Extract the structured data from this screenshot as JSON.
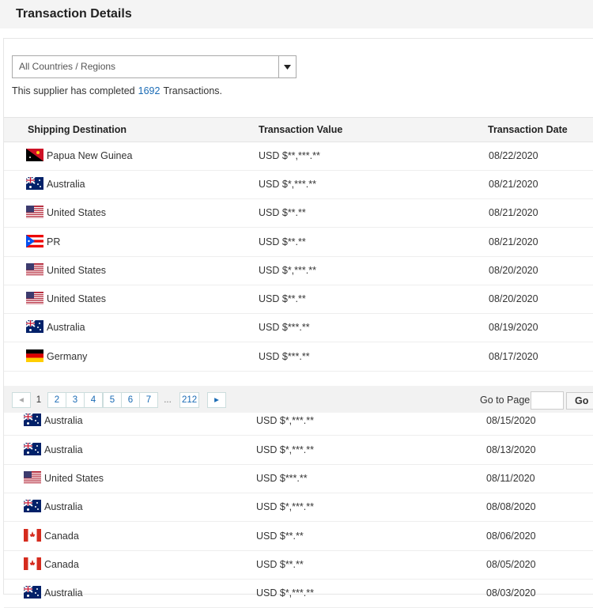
{
  "header": {
    "title": "Transaction Details"
  },
  "filter": {
    "selected": "All Countries / Regions"
  },
  "summary": {
    "prefix": "This supplier has completed",
    "count": "1692",
    "suffix": "Transactions."
  },
  "table": {
    "columns": [
      "Shipping Destination",
      "Transaction Value",
      "Transaction Date"
    ],
    "rows": [
      [
        "Papua New Guinea",
        "USD $**,***.**",
        "08/22/2020"
      ],
      [
        "Australia",
        "USD $*,***.**",
        "08/21/2020"
      ],
      [
        "United States",
        "USD $**.**",
        "08/21/2020"
      ],
      [
        "PR",
        "USD $**.**",
        "08/21/2020"
      ],
      [
        "United States",
        "USD $*,***.**",
        "08/20/2020"
      ],
      [
        "United States",
        "USD $**.**",
        "08/20/2020"
      ],
      [
        "Australia",
        "USD $***.**",
        "08/19/2020"
      ],
      [
        "Germany",
        "USD $***.**",
        "08/17/2020"
      ]
    ]
  },
  "pagination": {
    "pages": [
      "1",
      "2",
      "3",
      "4",
      "5",
      "6",
      "7",
      "...",
      "212"
    ],
    "goto_label": "Go to Page",
    "go_button": "Go"
  },
  "table_continued": {
    "rows": [
      [
        "Australia",
        "USD $*,***.**",
        "08/15/2020"
      ],
      [
        "Australia",
        "USD $*,***.**",
        "08/13/2020"
      ],
      [
        "United States",
        "USD $***.**",
        "08/11/2020"
      ],
      [
        "Australia",
        "USD $*,***.**",
        "08/08/2020"
      ],
      [
        "Canada",
        "USD $**.**",
        "08/06/2020"
      ],
      [
        "Canada",
        "USD $**.**",
        "08/05/2020"
      ],
      [
        "Australia",
        "USD $*,***.**",
        "08/03/2020"
      ]
    ]
  }
}
